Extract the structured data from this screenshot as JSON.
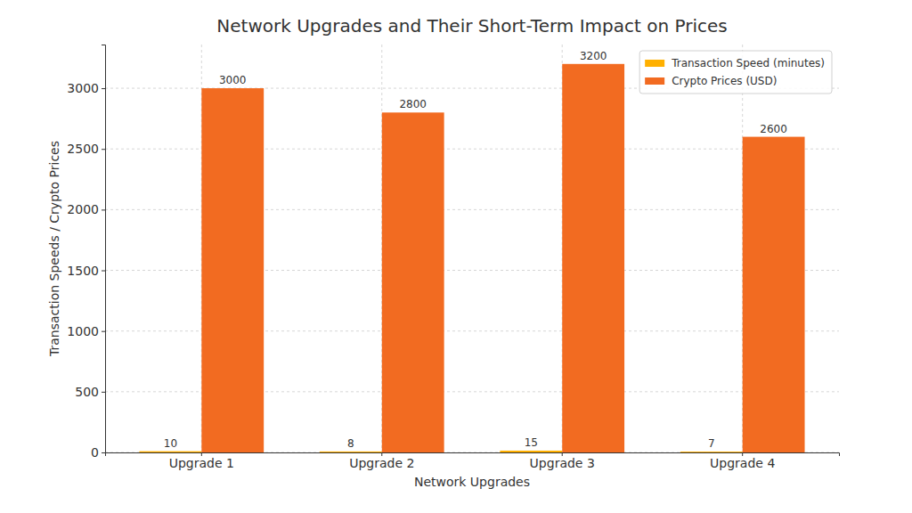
{
  "chart_data": {
    "type": "bar",
    "title": "Network Upgrades and Their Short-Term Impact on Prices",
    "xlabel": "Network Upgrades",
    "ylabel": "Transaction Speeds / Crypto Prices",
    "categories": [
      "Upgrade 1",
      "Upgrade 2",
      "Upgrade 3",
      "Upgrade 4"
    ],
    "series": [
      {
        "name": "Transaction Speed (minutes)",
        "color": "#ffb000",
        "values": [
          10,
          8,
          15,
          7
        ]
      },
      {
        "name": "Crypto Prices (USD)",
        "color": "#f26b21",
        "values": [
          3000,
          2800,
          3200,
          2600
        ]
      }
    ],
    "ylim": [
      0,
      3360
    ],
    "yticks": [
      0,
      500,
      1000,
      1500,
      2000,
      2500,
      3000
    ],
    "grid": true,
    "legend": "upper right",
    "data_labels": true
  }
}
